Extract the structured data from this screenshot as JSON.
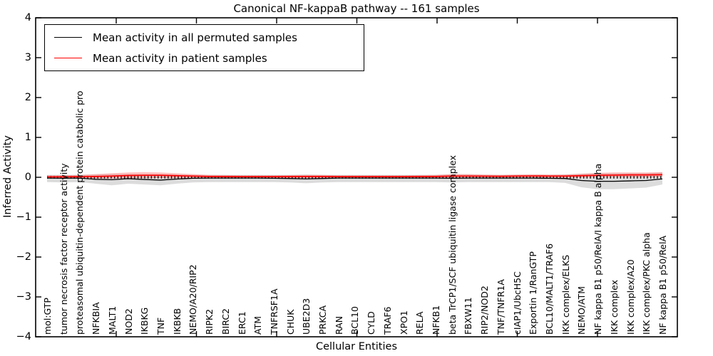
{
  "chart_data": {
    "type": "line",
    "title": "Canonical NF-kappaB pathway -- 161 samples",
    "xlabel": "Cellular Entities",
    "ylabel": "Inferred Activity",
    "ylim": [
      -4,
      4
    ],
    "yticks": [
      4,
      3,
      2,
      1,
      0,
      -1,
      -2,
      -3,
      -4
    ],
    "grid": false,
    "legend_position": "upper left",
    "zero_line": "dotted",
    "categories": [
      "mol:GTP",
      "tumor necrosis factor receptor activity",
      "proteasomal ubiquitin-dependent protein catabolic pro",
      "NFKBIA",
      "MALT1",
      "NOD2",
      "IKBKG",
      "TNF",
      "IKBKB",
      "NEMO/A20/RIP2",
      "RIPK2",
      "BIRC2",
      "ERC1",
      "ATM",
      "TNFRSF1A",
      "CHUK",
      "UBE2D3",
      "PRKCA",
      "RAN",
      "BCL10",
      "CYLD",
      "TRAF6",
      "XPO1",
      "RELA",
      "NFKB1",
      "beta TrCP1/SCF ubiquitin ligase complex",
      "FBXW11",
      "RIP2/NOD2",
      "TNF/TNFR1A",
      "cIAP1/UbcH5C",
      "Exportin 1/RanGTP",
      "BCL10/MALT1/TRAF6",
      "IKK complex/ELKS",
      "NEMO/ATM",
      "NF kappa B1 p50/RelA/I kappa B alpha",
      "IKK complex",
      "IKK complex/A20",
      "IKK complex/PKC alpha",
      "NF kappa B1 p50/RelA"
    ],
    "series": [
      {
        "name": "Mean activity in all permuted samples",
        "color": "#000000",
        "values": [
          -0.02,
          -0.025,
          -0.02,
          -0.05,
          -0.06,
          -0.035,
          -0.055,
          -0.07,
          -0.045,
          -0.025,
          -0.02,
          -0.02,
          -0.02,
          -0.02,
          -0.025,
          -0.03,
          -0.04,
          -0.03,
          -0.02,
          -0.02,
          -0.02,
          -0.02,
          -0.02,
          -0.02,
          -0.02,
          -0.025,
          -0.02,
          -0.02,
          -0.02,
          -0.02,
          -0.02,
          -0.025,
          -0.03,
          -0.08,
          -0.1,
          -0.1,
          -0.09,
          -0.08,
          -0.04
        ]
      },
      {
        "name": "Mean activity in patient samples",
        "color": "#ff0000",
        "values": [
          0.01,
          0.012,
          0.015,
          0.02,
          0.03,
          0.045,
          0.05,
          0.05,
          0.04,
          0.03,
          0.02,
          0.018,
          0.015,
          0.015,
          0.015,
          0.018,
          0.02,
          0.02,
          0.015,
          0.015,
          0.015,
          0.015,
          0.015,
          0.018,
          0.02,
          0.03,
          0.03,
          0.028,
          0.025,
          0.03,
          0.032,
          0.03,
          0.03,
          0.04,
          0.05,
          0.055,
          0.06,
          0.06,
          0.065
        ]
      }
    ],
    "bands": [
      {
        "name": "permuted-samples-range",
        "color": "rgba(185,185,185,0.5)",
        "upper": [
          0.06,
          0.06,
          0.06,
          0.07,
          0.08,
          0.08,
          0.08,
          0.08,
          0.07,
          0.06,
          0.06,
          0.06,
          0.06,
          0.06,
          0.06,
          0.06,
          0.07,
          0.06,
          0.06,
          0.06,
          0.06,
          0.06,
          0.06,
          0.06,
          0.06,
          0.07,
          0.07,
          0.06,
          0.06,
          0.06,
          0.06,
          0.06,
          0.07,
          0.09,
          0.1,
          0.1,
          0.1,
          0.1,
          0.12
        ],
        "lower": [
          -0.12,
          -0.13,
          -0.12,
          -0.16,
          -0.2,
          -0.16,
          -0.18,
          -0.2,
          -0.16,
          -0.13,
          -0.12,
          -0.12,
          -0.12,
          -0.12,
          -0.12,
          -0.13,
          -0.15,
          -0.13,
          -0.12,
          -0.12,
          -0.12,
          -0.12,
          -0.12,
          -0.12,
          -0.12,
          -0.13,
          -0.12,
          -0.12,
          -0.12,
          -0.12,
          -0.12,
          -0.12,
          -0.14,
          -0.25,
          -0.3,
          -0.3,
          -0.28,
          -0.26,
          -0.18
        ]
      },
      {
        "name": "patient-samples-range",
        "color": "rgba(255,70,70,0.33)",
        "upper": [
          0.05,
          0.05,
          0.06,
          0.08,
          0.1,
          0.12,
          0.13,
          0.12,
          0.1,
          0.08,
          0.06,
          0.055,
          0.05,
          0.05,
          0.05,
          0.055,
          0.06,
          0.06,
          0.05,
          0.05,
          0.05,
          0.05,
          0.05,
          0.055,
          0.06,
          0.08,
          0.08,
          0.07,
          0.06,
          0.07,
          0.075,
          0.07,
          0.07,
          0.09,
          0.11,
          0.12,
          0.12,
          0.12,
          0.13
        ],
        "lower": [
          -0.02,
          -0.02,
          -0.02,
          -0.03,
          -0.03,
          -0.02,
          -0.02,
          -0.02,
          -0.02,
          -0.02,
          -0.02,
          -0.02,
          -0.02,
          -0.02,
          -0.02,
          -0.02,
          -0.02,
          -0.02,
          -0.02,
          -0.02,
          -0.02,
          -0.02,
          -0.02,
          -0.02,
          -0.02,
          -0.02,
          -0.02,
          -0.02,
          -0.02,
          -0.02,
          -0.02,
          -0.02,
          -0.02,
          -0.01,
          0,
          0,
          0,
          0,
          0.01
        ]
      }
    ]
  }
}
